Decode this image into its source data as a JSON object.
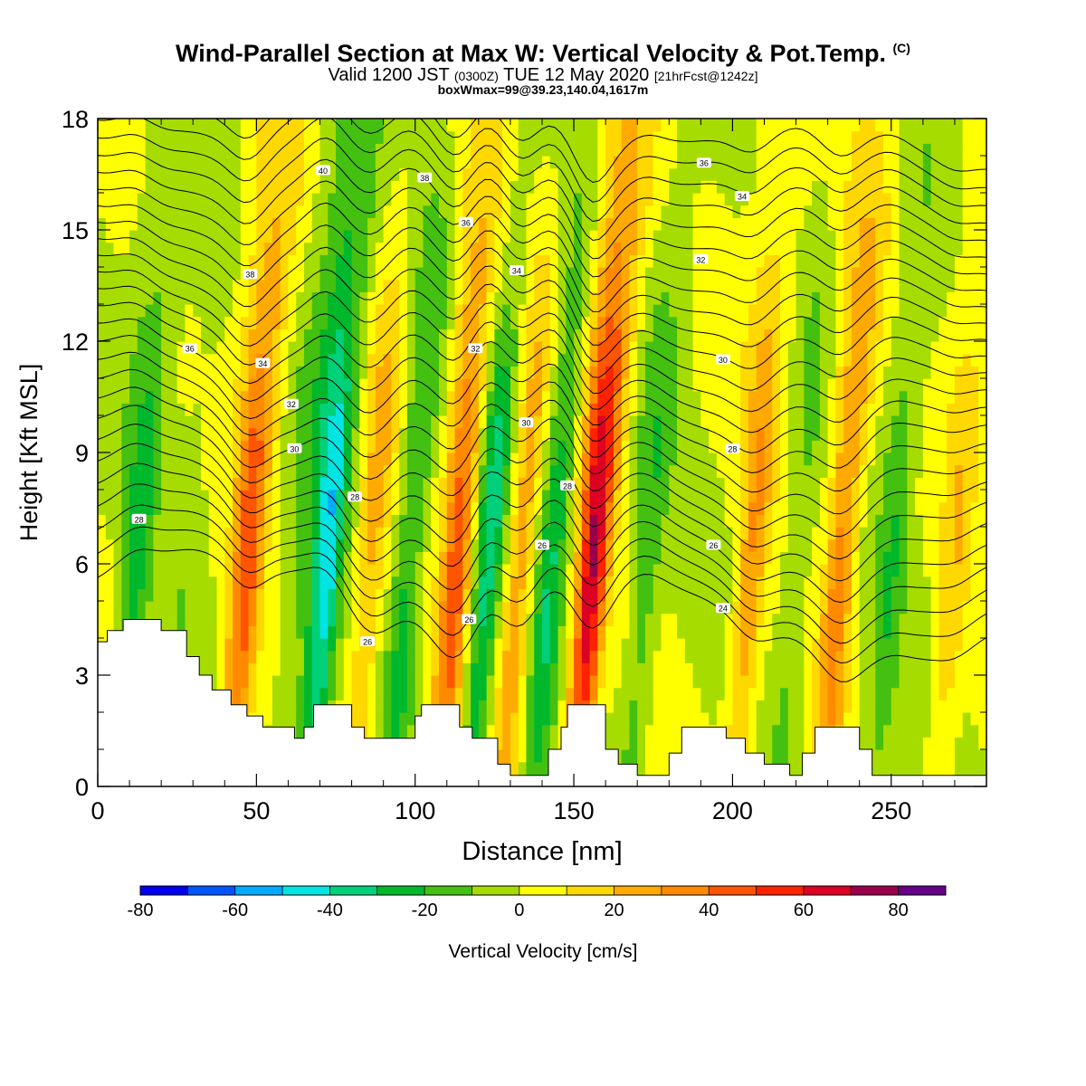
{
  "title": {
    "main": "Wind-Parallel Section at Max W: Vertical Velocity & Pot.Temp.",
    "copyright": "(C)",
    "valid_prefix": "Valid 1200 JST",
    "valid_utc": "(0300Z)",
    "valid_date": "TUE 12 May 2020",
    "forecast": "[21hrFcst@1242z]",
    "box_wmax": "boxWmax=99@39.23,140.04,1617m"
  },
  "chart_data": {
    "type": "heatmap",
    "xlabel": "Distance [nm]",
    "ylabel": "Height [Kft MSL]",
    "xlim": [
      0,
      280
    ],
    "ylim": [
      0,
      18
    ],
    "x_ticks": [
      0,
      50,
      100,
      150,
      200,
      250
    ],
    "y_ticks": [
      0,
      3,
      6,
      9,
      12,
      15,
      18
    ],
    "colorbar": {
      "label": "Vertical Velocity [cm/s]",
      "levels": [
        -80,
        -70,
        -60,
        -50,
        -40,
        -30,
        -20,
        -10,
        0,
        10,
        20,
        30,
        40,
        50,
        60,
        70,
        80,
        90
      ],
      "tick_labels": [
        "-80",
        "-60",
        "-40",
        "-20",
        "0",
        "20",
        "40",
        "60",
        "80"
      ],
      "colors": [
        "#0000ee",
        "#0055ff",
        "#00aaff",
        "#00e4e4",
        "#00d07a",
        "#00b82c",
        "#44c010",
        "#a6dc00",
        "#ffff00",
        "#ffd800",
        "#ffaa00",
        "#ff8a00",
        "#ff5500",
        "#ff2200",
        "#dd0022",
        "#99004c",
        "#660088"
      ]
    },
    "w_columns": [
      {
        "x": 12,
        "w": -20
      },
      {
        "x": 28,
        "w": -5
      },
      {
        "x": 47,
        "w": 40
      },
      {
        "x": 63,
        "w": -10
      },
      {
        "x": 72,
        "w": -40
      },
      {
        "x": 86,
        "w": 20
      },
      {
        "x": 98,
        "w": -20
      },
      {
        "x": 113,
        "w": 40
      },
      {
        "x": 123,
        "w": -30
      },
      {
        "x": 133,
        "w": 25
      },
      {
        "x": 143,
        "w": -25
      },
      {
        "x": 156,
        "w": 60
      },
      {
        "x": 173,
        "w": -15
      },
      {
        "x": 206,
        "w": 25
      },
      {
        "x": 220,
        "w": -10
      },
      {
        "x": 234,
        "w": 30
      },
      {
        "x": 250,
        "w": -15
      },
      {
        "x": 270,
        "w": 15
      }
    ],
    "terrain": [
      [
        0,
        3.9
      ],
      [
        3,
        4.2
      ],
      [
        8,
        4.5
      ],
      [
        18,
        4.5
      ],
      [
        20,
        4.2
      ],
      [
        26,
        4.2
      ],
      [
        28,
        3.5
      ],
      [
        32,
        3.0
      ],
      [
        36,
        2.6
      ],
      [
        42,
        2.2
      ],
      [
        47,
        1.9
      ],
      [
        52,
        1.6
      ],
      [
        58,
        1.6
      ],
      [
        62,
        1.3
      ],
      [
        65,
        1.6
      ],
      [
        68,
        2.2
      ],
      [
        76,
        2.2
      ],
      [
        80,
        1.6
      ],
      [
        84,
        1.3
      ],
      [
        96,
        1.3
      ],
      [
        100,
        1.9
      ],
      [
        102,
        2.2
      ],
      [
        110,
        2.2
      ],
      [
        114,
        1.6
      ],
      [
        118,
        1.3
      ],
      [
        126,
        0.6
      ],
      [
        130,
        0.3
      ],
      [
        138,
        0.3
      ],
      [
        142,
        1.0
      ],
      [
        146,
        1.6
      ],
      [
        148,
        2.2
      ],
      [
        156,
        2.2
      ],
      [
        160,
        1.0
      ],
      [
        164,
        0.6
      ],
      [
        170,
        0.3
      ],
      [
        178,
        0.3
      ],
      [
        180,
        0.9
      ],
      [
        184,
        1.6
      ],
      [
        194,
        1.6
      ],
      [
        198,
        1.3
      ],
      [
        204,
        0.9
      ],
      [
        210,
        0.6
      ],
      [
        218,
        0.3
      ],
      [
        222,
        0.9
      ],
      [
        226,
        1.6
      ],
      [
        236,
        1.6
      ],
      [
        240,
        1.0
      ],
      [
        244,
        0.3
      ],
      [
        280,
        0.3
      ]
    ],
    "contour_labels": [
      {
        "text": "40",
        "x": 71,
        "y": 16.6
      },
      {
        "text": "38",
        "x": 103,
        "y": 16.4
      },
      {
        "text": "36",
        "x": 191,
        "y": 16.8
      },
      {
        "text": "34",
        "x": 203,
        "y": 15.9
      },
      {
        "text": "36",
        "x": 116,
        "y": 15.2
      },
      {
        "text": "38",
        "x": 48,
        "y": 13.8
      },
      {
        "text": "34",
        "x": 132,
        "y": 13.9
      },
      {
        "text": "32",
        "x": 190,
        "y": 14.2
      },
      {
        "text": "36",
        "x": 29,
        "y": 11.8
      },
      {
        "text": "34",
        "x": 52,
        "y": 11.4
      },
      {
        "text": "32",
        "x": 119,
        "y": 11.8
      },
      {
        "text": "30",
        "x": 197,
        "y": 11.5
      },
      {
        "text": "32",
        "x": 61,
        "y": 10.3
      },
      {
        "text": "30",
        "x": 135,
        "y": 9.8
      },
      {
        "text": "30",
        "x": 62,
        "y": 9.1
      },
      {
        "text": "28",
        "x": 200,
        "y": 9.1
      },
      {
        "text": "28",
        "x": 148,
        "y": 8.1
      },
      {
        "text": "28",
        "x": 81,
        "y": 7.8
      },
      {
        "text": "28",
        "x": 13,
        "y": 7.2
      },
      {
        "text": "26",
        "x": 140,
        "y": 6.5
      },
      {
        "text": "26",
        "x": 194,
        "y": 6.5
      },
      {
        "text": "24",
        "x": 197,
        "y": 4.8
      },
      {
        "text": "26",
        "x": 117,
        "y": 4.5
      },
      {
        "text": "26",
        "x": 85,
        "y": 3.9
      }
    ]
  }
}
